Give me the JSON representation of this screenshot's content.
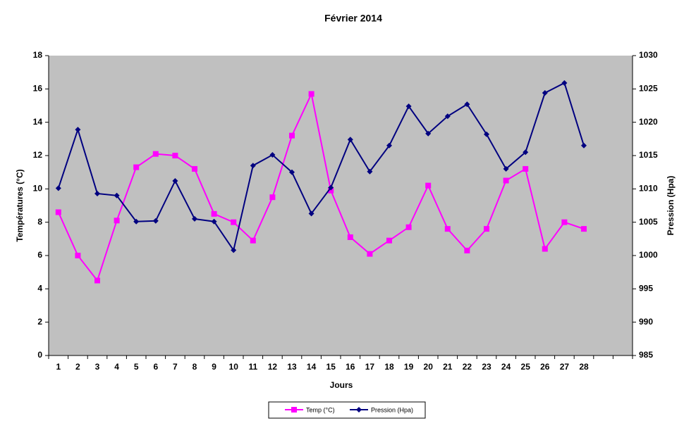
{
  "chart_data": {
    "type": "line",
    "title": "Février 2014",
    "x_label": "Jours",
    "y_label": "Températures (°C)",
    "y2_label": "Pression (Hpa)",
    "categories": [
      "1",
      "2",
      "3",
      "4",
      "5",
      "6",
      "7",
      "8",
      "9",
      "10",
      "11",
      "12",
      "13",
      "14",
      "15",
      "16",
      "17",
      "18",
      "19",
      "20",
      "21",
      "22",
      "23",
      "24",
      "25",
      "26",
      "27",
      "28",
      null,
      null
    ],
    "series": [
      {
        "name": "Temp (°C)",
        "color": "#ff00ff",
        "marker": "square",
        "values": [
          8.6,
          6.0,
          4.5,
          8.1,
          11.3,
          12.1,
          12.0,
          11.2,
          8.5,
          8.0,
          6.9,
          9.5,
          13.2,
          15.7,
          9.9,
          7.1,
          6.1,
          6.9,
          7.7,
          10.2,
          7.6,
          6.3,
          7.6,
          10.5,
          11.2,
          6.4,
          8.0,
          7.6,
          null,
          null
        ]
      },
      {
        "name": "Pression (Hpa)",
        "color": "#000080",
        "marker": "diamond",
        "axis": "y2",
        "values": [
          1010.1,
          1018.9,
          1009.3,
          1009.0,
          1005.1,
          1005.2,
          1011.2,
          1005.5,
          1005.1,
          1000.8,
          1013.5,
          1015.1,
          1012.5,
          1006.3,
          1010.2,
          1017.4,
          1012.6,
          1016.5,
          1022.4,
          1018.3,
          1020.9,
          1022.7,
          1018.2,
          1013.0,
          1015.5,
          1024.4,
          1025.9,
          1016.5,
          null,
          null
        ]
      }
    ],
    "ylim": [
      0,
      18
    ],
    "yticks": [
      0,
      2,
      4,
      6,
      8,
      10,
      12,
      14,
      16,
      18
    ],
    "y2lim": [
      985,
      1030
    ],
    "y2ticks": [
      985,
      990,
      995,
      1000,
      1005,
      1010,
      1015,
      1020,
      1025,
      1030
    ],
    "plot_background": "#c0c0c0"
  }
}
